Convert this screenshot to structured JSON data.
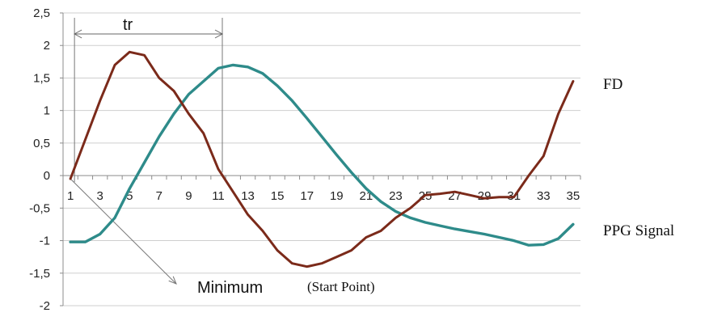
{
  "chart_data": {
    "type": "line",
    "x": [
      1,
      2,
      3,
      4,
      5,
      6,
      7,
      8,
      9,
      10,
      11,
      12,
      13,
      14,
      15,
      16,
      17,
      18,
      19,
      20,
      21,
      22,
      23,
      24,
      25,
      26,
      27,
      28,
      29,
      30,
      31,
      32,
      33,
      34,
      35
    ],
    "x_tick_labels": [
      "1",
      "3",
      "5",
      "7",
      "9",
      "11",
      "13",
      "15",
      "17",
      "19",
      "21",
      "23",
      "25",
      "27",
      "29",
      "31",
      "33",
      "35"
    ],
    "y_tick_labels": [
      "2,5",
      "2",
      "1,5",
      "1",
      "0,5",
      "0",
      "-0,5",
      "-1",
      "-1,5",
      "-2"
    ],
    "ylim": [
      -2,
      2.5
    ],
    "y_ticks": [
      2.5,
      2,
      1.5,
      1,
      0.5,
      0,
      -0.5,
      -1,
      -1.5,
      -2
    ],
    "grid": "horizontal",
    "series": [
      {
        "name": "FD",
        "color": "#7b2a1a",
        "values": [
          -0.05,
          0.55,
          1.15,
          1.7,
          1.9,
          1.85,
          1.5,
          1.3,
          0.95,
          0.65,
          0.1,
          -0.25,
          -0.6,
          -0.85,
          -1.15,
          -1.35,
          -1.4,
          -1.35,
          -1.25,
          -1.15,
          -0.95,
          -0.85,
          -0.65,
          -0.5,
          -0.3,
          -0.28,
          -0.25,
          -0.3,
          -0.35,
          -0.33,
          -0.33,
          0.0,
          0.3,
          0.95,
          1.45
        ]
      },
      {
        "name": "PPG Signal",
        "color": "#2e8b8a",
        "values": [
          -1.02,
          -1.02,
          -0.9,
          -0.65,
          -0.2,
          0.2,
          0.6,
          0.95,
          1.25,
          1.45,
          1.65,
          1.7,
          1.67,
          1.57,
          1.38,
          1.15,
          0.88,
          0.6,
          0.32,
          0.05,
          -0.2,
          -0.4,
          -0.55,
          -0.65,
          -0.72,
          -0.77,
          -0.82,
          -0.86,
          -0.9,
          -0.95,
          -1.0,
          -1.07,
          -1.06,
          -0.97,
          -0.75
        ]
      }
    ],
    "annotations": {
      "tr_label": "tr",
      "tr_from_x": 1,
      "tr_to_x": 11,
      "minimum_label": "Minimum",
      "start_point_label": "(Start Point)"
    }
  }
}
